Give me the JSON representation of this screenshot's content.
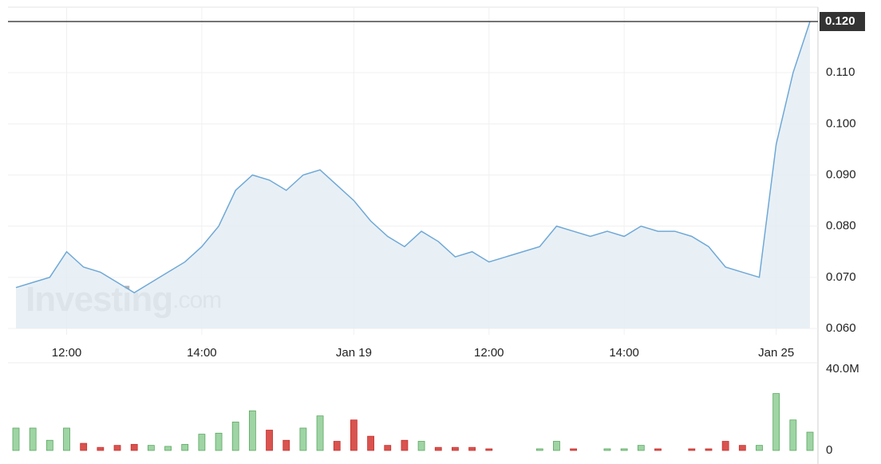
{
  "chart_data": [
    {
      "type": "area",
      "categories": [
        null,
        null,
        null,
        "12:00",
        null,
        null,
        null,
        null,
        null,
        null,
        null,
        "14:00",
        null,
        null,
        null,
        null,
        null,
        null,
        null,
        null,
        "Jan 19",
        null,
        null,
        null,
        null,
        null,
        null,
        null,
        "12:00",
        null,
        null,
        null,
        null,
        null,
        null,
        null,
        "14:00",
        null,
        null,
        null,
        null,
        null,
        null,
        null,
        null,
        "Jan 25",
        null,
        null
      ],
      "values": [
        0.068,
        0.069,
        0.07,
        0.075,
        0.072,
        0.071,
        0.069,
        0.067,
        0.069,
        0.071,
        0.073,
        0.076,
        0.08,
        0.087,
        0.09,
        0.089,
        0.087,
        0.09,
        0.091,
        0.088,
        0.085,
        0.081,
        0.078,
        0.076,
        0.079,
        0.077,
        0.074,
        0.075,
        0.073,
        0.074,
        0.075,
        0.076,
        0.08,
        0.079,
        0.078,
        0.079,
        0.078,
        0.08,
        0.079,
        0.079,
        0.078,
        0.076,
        0.072,
        0.071,
        0.07,
        0.096,
        0.11,
        0.12
      ],
      "color": "#6fa8d6",
      "fill": "#e4edf4",
      "ylim": [
        0.06,
        0.12
      ],
      "yticks": [
        {
          "value": 0.06,
          "label": "0.060"
        },
        {
          "value": 0.07,
          "label": "0.070"
        },
        {
          "value": 0.08,
          "label": "0.080"
        },
        {
          "value": 0.09,
          "label": "0.090"
        },
        {
          "value": 0.1,
          "label": "0.100"
        },
        {
          "value": 0.11,
          "label": "0.110"
        }
      ],
      "last_price": {
        "value": 0.12,
        "label": "0.120"
      },
      "watermark": [
        "Investing",
        ".com"
      ],
      "grid": true
    },
    {
      "type": "bar",
      "values": [
        11,
        11,
        5,
        11,
        3.5,
        1.5,
        2.5,
        3,
        2.5,
        2,
        3,
        8,
        8.5,
        14,
        19.5,
        10,
        5,
        11,
        17,
        4.5,
        15,
        7,
        2.5,
        5,
        4.5,
        1.5,
        1.5,
        1.5,
        0.8,
        0,
        0,
        0.8,
        4.5,
        0.8,
        0,
        0.8,
        0.8,
        2.5,
        0.8,
        0,
        0.8,
        0.8,
        4.5,
        2.5,
        2.5,
        28,
        15,
        9
      ],
      "colors": [
        "#9fd4a5",
        "#9fd4a5",
        "#9fd4a5",
        "#9fd4a5",
        "#d9534f",
        "#d9534f",
        "#d9534f",
        "#d9534f",
        "#9fd4a5",
        "#9fd4a5",
        "#9fd4a5",
        "#9fd4a5",
        "#9fd4a5",
        "#9fd4a5",
        "#9fd4a5",
        "#d9534f",
        "#d9534f",
        "#9fd4a5",
        "#9fd4a5",
        "#d9534f",
        "#d9534f",
        "#d9534f",
        "#d9534f",
        "#d9534f",
        "#9fd4a5",
        "#d9534f",
        "#d9534f",
        "#d9534f",
        "#d9534f",
        "#d9534f",
        "#d9534f",
        "#9fd4a5",
        "#9fd4a5",
        "#d9534f",
        "#9fd4a5",
        "#9fd4a5",
        "#9fd4a5",
        "#9fd4a5",
        "#d9534f",
        "#d9534f",
        "#d9534f",
        "#d9534f",
        "#d9534f",
        "#d9534f",
        "#9fd4a5",
        "#9fd4a5",
        "#9fd4a5",
        "#9fd4a5"
      ],
      "ylim": [
        0,
        40
      ],
      "yticks": [
        0,
        {
          "value": 40,
          "label": "40.0M"
        }
      ]
    }
  ]
}
